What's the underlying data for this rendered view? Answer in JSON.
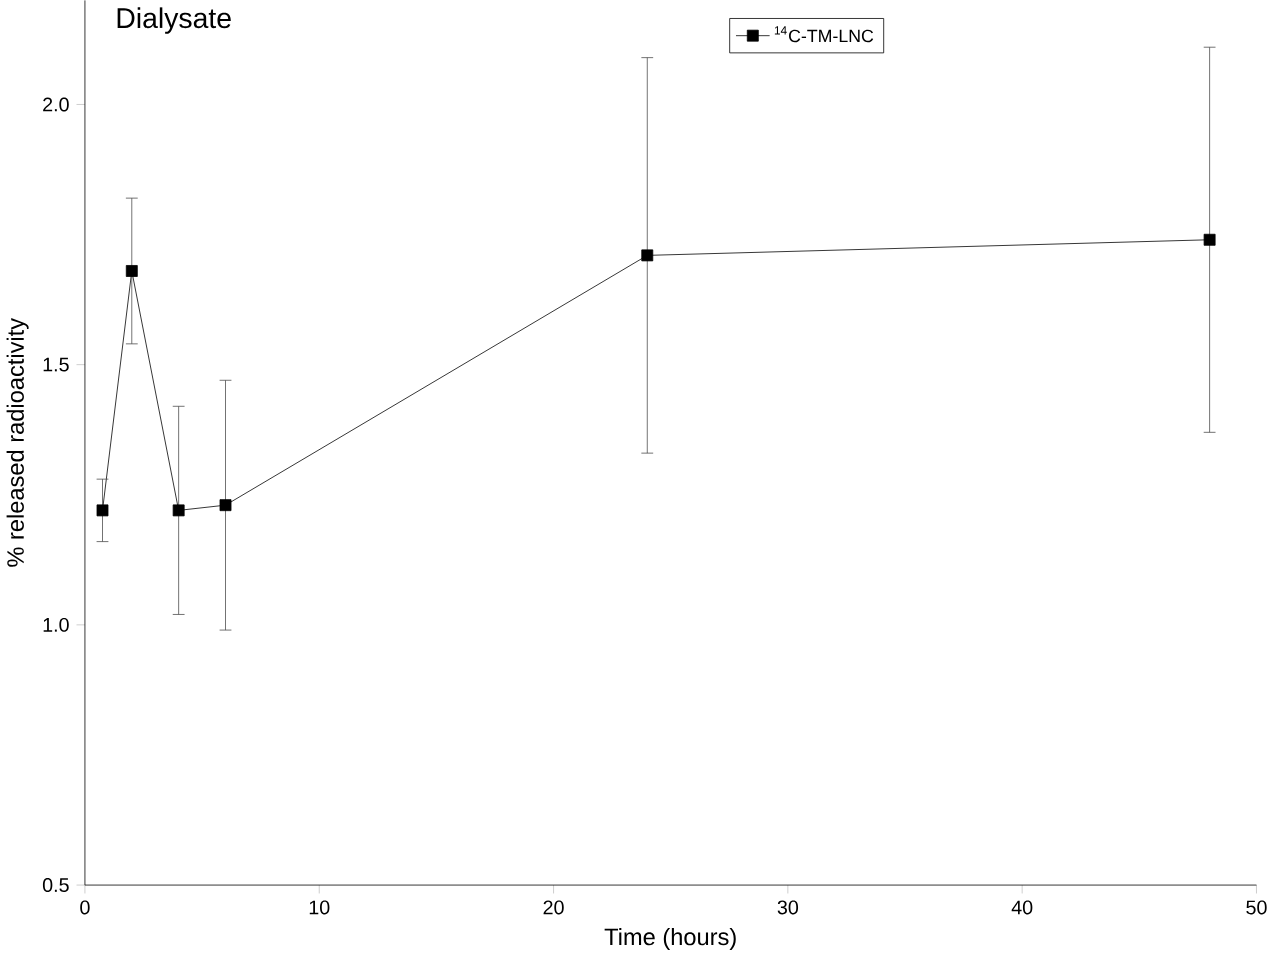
{
  "chart_data": {
    "type": "line",
    "title": "Dialysate",
    "xlabel": "Time (hours)",
    "ylabel": "% released radioactivity",
    "x": [
      0.75,
      2,
      4,
      6,
      24,
      48
    ],
    "series": [
      {
        "name": "$^{14}$C-TM-LNC",
        "color": "#000000",
        "values": [
          1.22,
          1.68,
          1.22,
          1.23,
          1.71,
          1.74
        ],
        "errors": [
          0.06,
          0.14,
          0.2,
          0.24,
          0.38,
          0.37
        ]
      }
    ],
    "xlim": [
      0,
      50
    ],
    "ylim": [
      0.5,
      2.2
    ],
    "xticks": [
      0,
      10,
      20,
      30,
      40,
      50
    ],
    "yticks": [
      0.5,
      {
        "value": 1.0,
        "label": "1.0"
      },
      1.5,
      {
        "value": 2.0,
        "label": "2.0"
      }
    ],
    "marker": "square",
    "line_style": "solid",
    "legend": "top right",
    "grid": false
  }
}
